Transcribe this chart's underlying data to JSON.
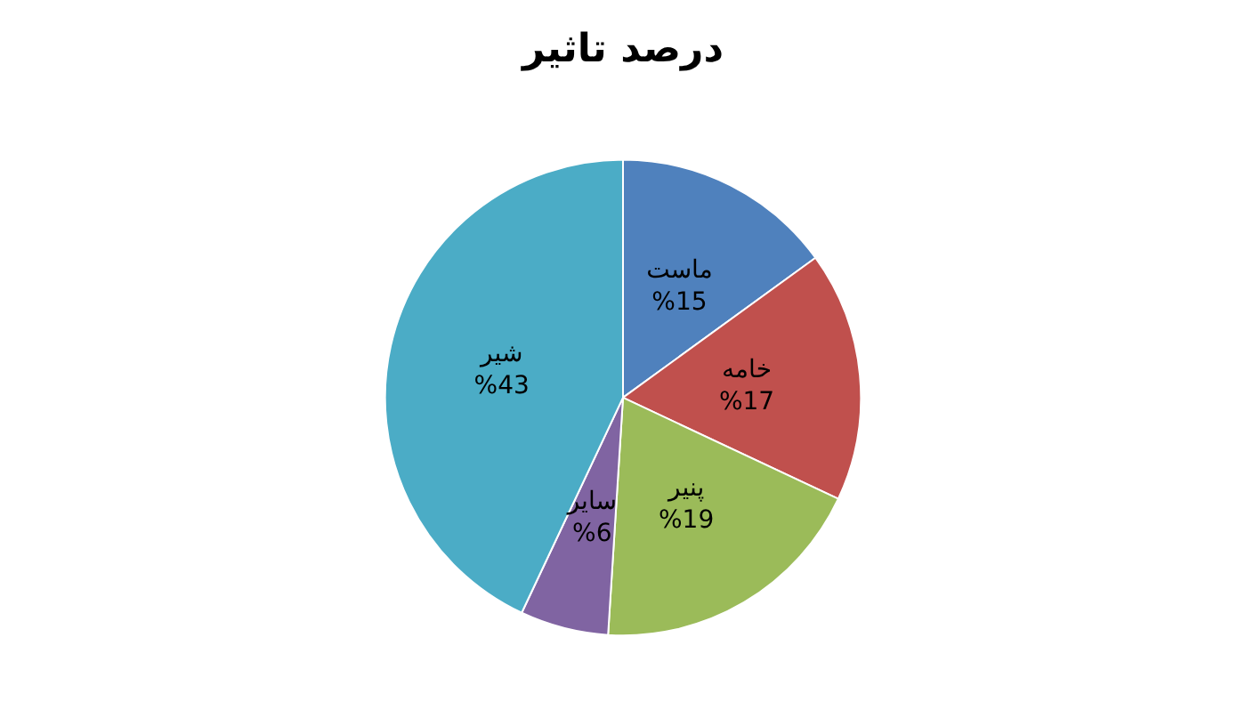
{
  "chart_data": {
    "type": "pie",
    "title": "درصد تاثیر",
    "categories": [
      "ماست",
      "خامه",
      "پنیر",
      "سایر",
      "شیر"
    ],
    "values": [
      15,
      17,
      19,
      6,
      43
    ],
    "value_labels": [
      "%15",
      "%17",
      "%19",
      "%6",
      "%43"
    ],
    "colors": [
      "#4f81bd",
      "#c0504d",
      "#9bbb59",
      "#8064a2",
      "#4bacc6"
    ],
    "legend": false
  }
}
